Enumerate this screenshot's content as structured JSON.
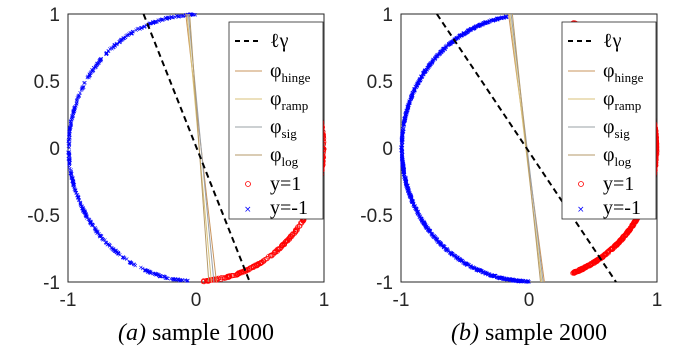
{
  "chart_data": [
    {
      "type": "scatter",
      "caption_label": "(a)",
      "caption_text": "sample 1000",
      "n_samples": 1000,
      "xlim": [
        -1,
        1
      ],
      "ylim": [
        -1,
        1
      ],
      "xticks": [
        "-1",
        "0",
        "1"
      ],
      "yticks": [
        "1",
        "0.5",
        "0",
        "-0.5",
        "-1"
      ],
      "decision_boundary": {
        "name": "ℓγ",
        "x1": [
          -0.41,
          1.0
        ],
        "x2": [
          0.42,
          -1.0
        ]
      },
      "classifier_lines": [
        {
          "name": "φhinge",
          "color": "#c9945c",
          "x1": [
            -0.08,
            1.0
          ],
          "x2": [
            0.16,
            -1.0
          ]
        },
        {
          "name": "φramp",
          "color": "#d8c27a",
          "x1": [
            -0.07,
            1.0
          ],
          "x2": [
            0.12,
            -1.0
          ]
        },
        {
          "name": "φsig",
          "color": "#9aa0a6",
          "x1": [
            -0.06,
            1.0
          ],
          "x2": [
            0.14,
            -1.0
          ]
        },
        {
          "name": "φlog",
          "color": "#b59a6a",
          "x1": [
            -0.05,
            1.0
          ],
          "x2": [
            0.1,
            -1.0
          ]
        }
      ],
      "class_pos_arc_deg": [
        -87,
        60
      ],
      "class_neg_arc_deg": [
        90,
        267
      ]
    },
    {
      "type": "scatter",
      "caption_label": "(b)",
      "caption_text": "sample 2000",
      "n_samples": 2000,
      "xlim": [
        -1,
        1
      ],
      "ylim": [
        -1,
        1
      ],
      "xticks": [
        "-1",
        "0",
        "1"
      ],
      "yticks": [
        "1",
        "0.5",
        "0",
        "-0.5",
        "-1"
      ],
      "decision_boundary": {
        "name": "ℓγ",
        "x1": [
          -0.72,
          1.0
        ],
        "x2": [
          0.68,
          -1.0
        ]
      },
      "classifier_lines": [
        {
          "name": "φhinge",
          "color": "#c9945c",
          "x1": [
            -0.16,
            1.0
          ],
          "x2": [
            0.12,
            -1.0
          ]
        },
        {
          "name": "φramp",
          "color": "#d8c27a",
          "x1": [
            -0.15,
            1.0
          ],
          "x2": [
            0.1,
            -1.0
          ]
        },
        {
          "name": "φsig",
          "color": "#9aa0a6",
          "x1": [
            -0.14,
            1.0
          ],
          "x2": [
            0.11,
            -1.0
          ]
        },
        {
          "name": "φlog",
          "color": "#b59a6a",
          "x1": [
            -0.13,
            1.0
          ],
          "x2": [
            0.09,
            -1.0
          ]
        }
      ],
      "class_pos_arc_deg": [
        -70,
        70
      ],
      "class_neg_arc_deg": [
        100,
        270
      ]
    }
  ],
  "legend": {
    "boundary_label": "ℓγ",
    "hinge_base": "φ",
    "hinge_sub": "hinge",
    "ramp_base": "φ",
    "ramp_sub": "ramp",
    "sig_base": "φ",
    "sig_sub": "sig",
    "log_base": "φ",
    "log_sub": "log",
    "pos_label": "y=1",
    "neg_label": "y=-1"
  },
  "colors": {
    "positive": "#ff0000",
    "negative": "#0000ff",
    "boundary": "#000000"
  }
}
